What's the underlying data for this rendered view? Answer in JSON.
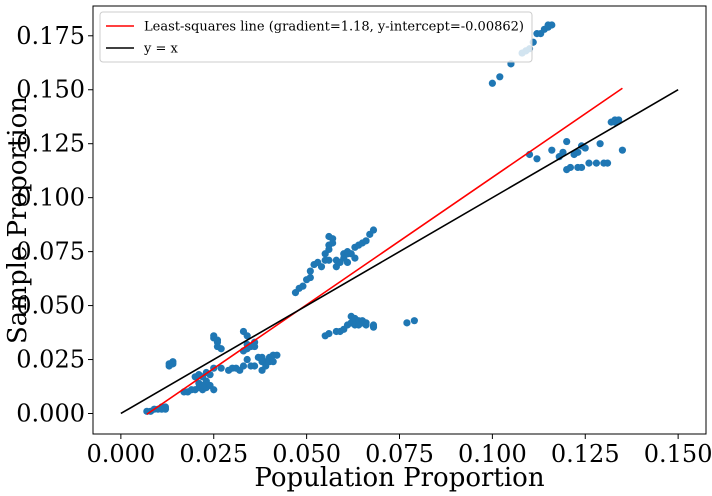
{
  "chart_data": {
    "type": "scatter",
    "xlabel": "Population Proportion",
    "ylabel": "Sample Proportion",
    "xlim": [
      -0.0075,
      0.1575
    ],
    "ylim": [
      -0.0095,
      0.1888
    ],
    "x_ticks": [
      "0.000",
      "0.025",
      "0.050",
      "0.075",
      "0.100",
      "0.125",
      "0.150"
    ],
    "y_ticks": [
      "0.000",
      "0.025",
      "0.050",
      "0.075",
      "0.100",
      "0.125",
      "0.150",
      "0.175"
    ],
    "grid": false,
    "legend_position": "top-left",
    "series": [
      {
        "kind": "points",
        "color": "#1f77b4",
        "points": [
          [
            0.007,
            0.001
          ],
          [
            0.008,
            0.001
          ],
          [
            0.009,
            0.002
          ],
          [
            0.01,
            0.002
          ],
          [
            0.011,
            0.003
          ],
          [
            0.012,
            0.003
          ],
          [
            0.012,
            0.002
          ],
          [
            0.011,
            0.002
          ],
          [
            0.013,
            0.022
          ],
          [
            0.013,
            0.023
          ],
          [
            0.014,
            0.024
          ],
          [
            0.014,
            0.023
          ],
          [
            0.017,
            0.01
          ],
          [
            0.018,
            0.01
          ],
          [
            0.019,
            0.011
          ],
          [
            0.02,
            0.011
          ],
          [
            0.021,
            0.012
          ],
          [
            0.022,
            0.011
          ],
          [
            0.023,
            0.012
          ],
          [
            0.02,
            0.017
          ],
          [
            0.021,
            0.018
          ],
          [
            0.022,
            0.017
          ],
          [
            0.023,
            0.019
          ],
          [
            0.021,
            0.014
          ],
          [
            0.022,
            0.013
          ],
          [
            0.024,
            0.013
          ],
          [
            0.023,
            0.015
          ],
          [
            0.025,
            0.011
          ],
          [
            0.024,
            0.018
          ],
          [
            0.025,
            0.035
          ],
          [
            0.025,
            0.036
          ],
          [
            0.026,
            0.034
          ],
          [
            0.026,
            0.031
          ],
          [
            0.027,
            0.03
          ],
          [
            0.026,
            0.033
          ],
          [
            0.025,
            0.021
          ],
          [
            0.027,
            0.021
          ],
          [
            0.029,
            0.02
          ],
          [
            0.03,
            0.021
          ],
          [
            0.031,
            0.021
          ],
          [
            0.033,
            0.022
          ],
          [
            0.032,
            0.02
          ],
          [
            0.033,
            0.038
          ],
          [
            0.034,
            0.036
          ],
          [
            0.034,
            0.032
          ],
          [
            0.035,
            0.031
          ],
          [
            0.033,
            0.029
          ],
          [
            0.034,
            0.03
          ],
          [
            0.036,
            0.033
          ],
          [
            0.036,
            0.031
          ],
          [
            0.034,
            0.025
          ],
          [
            0.035,
            0.022
          ],
          [
            0.036,
            0.022
          ],
          [
            0.037,
            0.026
          ],
          [
            0.038,
            0.026
          ],
          [
            0.039,
            0.024
          ],
          [
            0.038,
            0.024
          ],
          [
            0.038,
            0.02
          ],
          [
            0.039,
            0.022
          ],
          [
            0.04,
            0.026
          ],
          [
            0.04,
            0.024
          ],
          [
            0.041,
            0.027
          ],
          [
            0.042,
            0.027
          ],
          [
            0.041,
            0.024
          ],
          [
            0.047,
            0.056
          ],
          [
            0.048,
            0.058
          ],
          [
            0.049,
            0.059
          ],
          [
            0.05,
            0.062
          ],
          [
            0.051,
            0.063
          ],
          [
            0.051,
            0.066
          ],
          [
            0.052,
            0.069
          ],
          [
            0.053,
            0.07
          ],
          [
            0.054,
            0.068
          ],
          [
            0.055,
            0.071
          ],
          [
            0.056,
            0.071
          ],
          [
            0.055,
            0.074
          ],
          [
            0.056,
            0.076
          ],
          [
            0.056,
            0.078
          ],
          [
            0.057,
            0.081
          ],
          [
            0.056,
            0.082
          ],
          [
            0.057,
            0.079
          ],
          [
            0.058,
            0.071
          ],
          [
            0.058,
            0.068
          ],
          [
            0.059,
            0.07
          ],
          [
            0.06,
            0.072
          ],
          [
            0.06,
            0.074
          ],
          [
            0.061,
            0.074
          ],
          [
            0.062,
            0.074
          ],
          [
            0.061,
            0.075
          ],
          [
            0.063,
            0.077
          ],
          [
            0.064,
            0.078
          ],
          [
            0.065,
            0.079
          ],
          [
            0.066,
            0.08
          ],
          [
            0.067,
            0.083
          ],
          [
            0.068,
            0.085
          ],
          [
            0.061,
            0.07
          ],
          [
            0.063,
            0.072
          ],
          [
            0.055,
            0.036
          ],
          [
            0.056,
            0.037
          ],
          [
            0.058,
            0.038
          ],
          [
            0.059,
            0.038
          ],
          [
            0.06,
            0.039
          ],
          [
            0.061,
            0.041
          ],
          [
            0.062,
            0.042
          ],
          [
            0.062,
            0.045
          ],
          [
            0.063,
            0.044
          ],
          [
            0.064,
            0.043
          ],
          [
            0.065,
            0.042
          ],
          [
            0.065,
            0.043
          ],
          [
            0.066,
            0.042
          ],
          [
            0.068,
            0.04
          ],
          [
            0.068,
            0.041
          ],
          [
            0.063,
            0.041
          ],
          [
            0.064,
            0.041
          ],
          [
            0.066,
            0.041
          ],
          [
            0.077,
            0.042
          ],
          [
            0.079,
            0.043
          ],
          [
            0.1,
            0.153
          ],
          [
            0.102,
            0.156
          ],
          [
            0.105,
            0.162
          ],
          [
            0.108,
            0.167
          ],
          [
            0.109,
            0.168
          ],
          [
            0.11,
            0.169
          ],
          [
            0.111,
            0.172
          ],
          [
            0.112,
            0.176
          ],
          [
            0.113,
            0.176
          ],
          [
            0.114,
            0.178
          ],
          [
            0.115,
            0.179
          ],
          [
            0.115,
            0.18
          ],
          [
            0.116,
            0.18
          ],
          [
            0.11,
            0.12
          ],
          [
            0.112,
            0.118
          ],
          [
            0.116,
            0.122
          ],
          [
            0.118,
            0.119
          ],
          [
            0.119,
            0.121
          ],
          [
            0.12,
            0.126
          ],
          [
            0.12,
            0.113
          ],
          [
            0.121,
            0.114
          ],
          [
            0.122,
            0.12
          ],
          [
            0.123,
            0.121
          ],
          [
            0.123,
            0.114
          ],
          [
            0.124,
            0.124
          ],
          [
            0.124,
            0.114
          ],
          [
            0.125,
            0.123
          ],
          [
            0.126,
            0.116
          ],
          [
            0.128,
            0.116
          ],
          [
            0.129,
            0.125
          ],
          [
            0.13,
            0.116
          ],
          [
            0.131,
            0.116
          ],
          [
            0.132,
            0.135
          ],
          [
            0.133,
            0.135
          ],
          [
            0.133,
            0.136
          ],
          [
            0.134,
            0.136
          ],
          [
            0.135,
            0.122
          ]
        ]
      },
      {
        "kind": "line",
        "name": "Least-squares line (gradient=1.18, y-intercept=-0.00862)",
        "color": "#ff0000",
        "x": [
          0.007,
          0.135
        ],
        "y": [
          -0.00036,
          0.15068
        ]
      },
      {
        "kind": "line",
        "name": "y = x",
        "color": "#000000",
        "x": [
          0.0,
          0.15
        ],
        "y": [
          0.0,
          0.15
        ]
      }
    ]
  }
}
